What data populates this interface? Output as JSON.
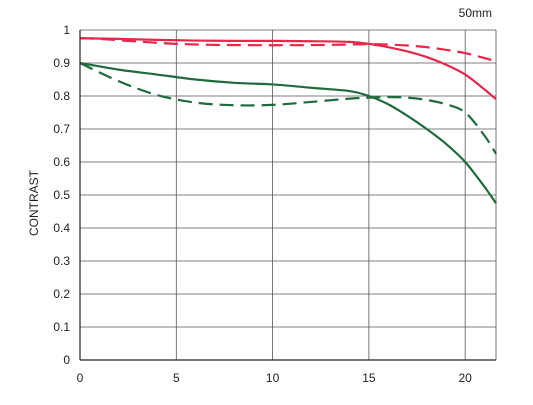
{
  "chart_data": {
    "type": "line",
    "title": "50mm",
    "xlabel": "",
    "ylabel": "CONTRAST",
    "xlim": [
      0,
      21.6
    ],
    "ylim": [
      0,
      1
    ],
    "x_ticks": [
      0,
      5,
      10,
      15,
      20
    ],
    "y_ticks": [
      0,
      0.1,
      0.2,
      0.3,
      0.4,
      0.5,
      0.6,
      0.7,
      0.8,
      0.9,
      1
    ],
    "grid": true,
    "legend": "none",
    "series": [
      {
        "color": "#e8264a",
        "style": "solid",
        "x": [
          0,
          2,
          4,
          6,
          8,
          10,
          12,
          14,
          15,
          16,
          17,
          18,
          19,
          20,
          21,
          21.6
        ],
        "y": [
          0.975,
          0.973,
          0.97,
          0.968,
          0.967,
          0.967,
          0.966,
          0.964,
          0.958,
          0.948,
          0.935,
          0.918,
          0.895,
          0.865,
          0.82,
          0.79
        ]
      },
      {
        "color": "#e8264a",
        "style": "dashed",
        "x": [
          0,
          1,
          3,
          5,
          7,
          9,
          11,
          13,
          15,
          16,
          17,
          18,
          19,
          20,
          21,
          21.6
        ],
        "y": [
          0.975,
          0.973,
          0.965,
          0.958,
          0.955,
          0.954,
          0.954,
          0.955,
          0.957,
          0.956,
          0.953,
          0.948,
          0.94,
          0.93,
          0.915,
          0.905
        ]
      },
      {
        "color": "#1f6b3b",
        "style": "solid",
        "x": [
          0,
          2,
          4,
          6,
          8,
          10,
          12,
          14,
          15,
          16,
          17,
          18,
          19,
          20,
          21,
          21.6
        ],
        "y": [
          0.9,
          0.88,
          0.865,
          0.85,
          0.84,
          0.835,
          0.825,
          0.815,
          0.8,
          0.775,
          0.74,
          0.7,
          0.655,
          0.6,
          0.525,
          0.475
        ]
      },
      {
        "color": "#1f6b3b",
        "style": "dashed",
        "x": [
          0,
          2,
          4,
          6,
          8,
          10,
          12,
          14,
          15,
          16,
          17,
          18,
          19,
          20,
          21,
          21.6
        ],
        "y": [
          0.9,
          0.845,
          0.803,
          0.78,
          0.772,
          0.773,
          0.782,
          0.792,
          0.795,
          0.797,
          0.795,
          0.788,
          0.775,
          0.75,
          0.68,
          0.625
        ]
      }
    ]
  }
}
